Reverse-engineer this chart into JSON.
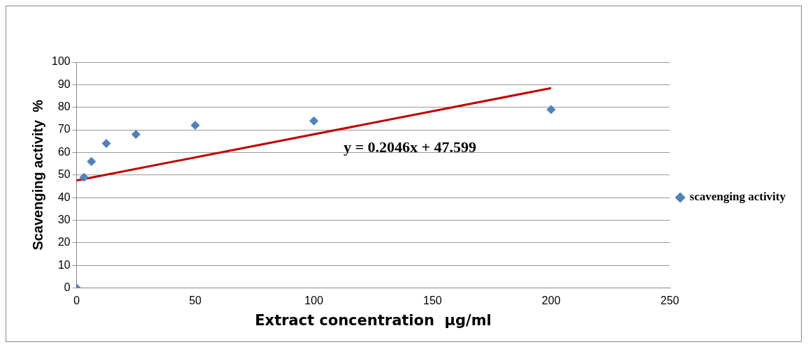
{
  "chart_data": {
    "type": "scatter",
    "xlabel": "Extract concentration  μg/ml",
    "ylabel": "Scavenging activity  %",
    "xlim": [
      0,
      250
    ],
    "xticks": [
      0,
      50,
      100,
      150,
      200,
      250
    ],
    "ylim": [
      0,
      100
    ],
    "yticks": [
      0,
      10,
      20,
      30,
      40,
      50,
      60,
      70,
      80,
      90,
      100
    ],
    "grid": "y",
    "legend": "right",
    "annotations": [
      "y = 0.2046x + 47.599"
    ],
    "series": [
      {
        "name": "scavenging activity",
        "marker": "diamond",
        "color": "#4f81bd",
        "x": [
          0,
          3.125,
          6.25,
          12.5,
          25,
          50,
          100,
          200
        ],
        "values": [
          0,
          49,
          56,
          64,
          68,
          72,
          74,
          79
        ]
      },
      {
        "type": "line",
        "marker": "none",
        "color": "#c00000",
        "x": [
          0,
          200
        ],
        "values": [
          47.6,
          88.5
        ]
      }
    ]
  }
}
